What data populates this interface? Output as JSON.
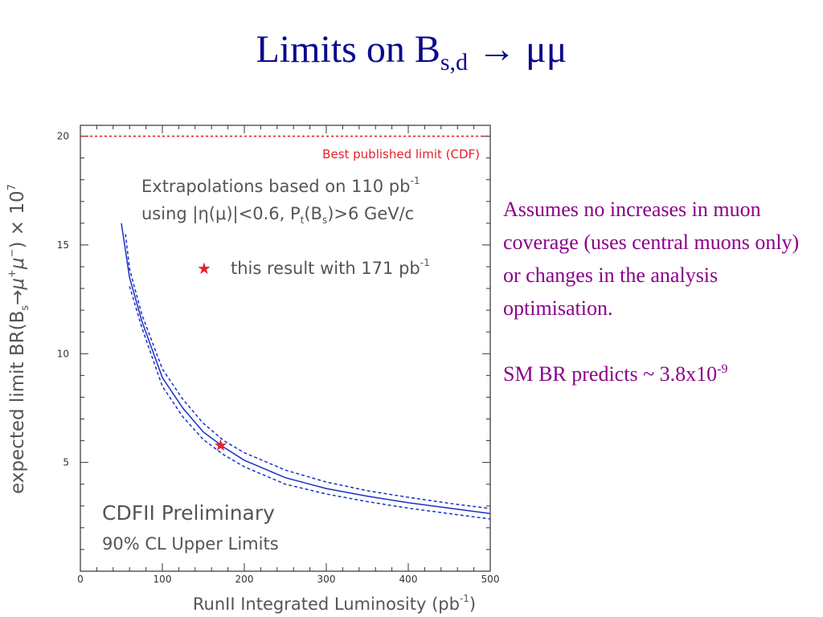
{
  "slide": {
    "title_main": "Limits on B",
    "title_sub": "s,d",
    "title_arrow": "→",
    "title_tail": "μμ"
  },
  "notes": {
    "assumption": "Assumes no increases in muon coverage (uses central muons only) or changes in the analysis optimisation.",
    "sm_prefix": "SM BR predicts ~ 3.8x10",
    "sm_exponent": "-9"
  },
  "chart_data": {
    "type": "line",
    "xlabel_main": "RunII Integrated Luminosity (pb",
    "xlabel_exp": "-1",
    "xlabel_close": ")",
    "ylabel_main": "expected limit BR(B",
    "ylabel_sub": "s",
    "ylabel_arrow": "→",
    "ylabel_mid": "μ",
    "ylabel_plus": "+",
    "ylabel_mu": "μ",
    "ylabel_minus": "−",
    "ylabel_tail": ") × 10",
    "ylabel_exp": "7",
    "xlim": [
      0,
      500
    ],
    "ylim": [
      0,
      20.5
    ],
    "x_ticks": [
      0,
      100,
      200,
      300,
      400,
      500
    ],
    "y_ticks": [
      5,
      10,
      15,
      20
    ],
    "best_limit": {
      "y": 20,
      "label": "Best published limit (CDF)",
      "color": "#e8202a"
    },
    "annotation_line1_a": "Extrapolations based on 110 pb",
    "annotation_line1_exp": "-1",
    "annotation_line2_a": "using |η(μ)|<0.6, P",
    "annotation_line2_sub_t": "t",
    "annotation_line2_b": "(B",
    "annotation_line2_sub_s": "s",
    "annotation_line2_c": ")>6 GeV/c",
    "legend_star_label": "this result with 171 pb",
    "legend_star_exp": "-1",
    "preliminary_label": "CDFII Preliminary",
    "cl_label": "90% CL Upper Limits",
    "series": [
      {
        "style": "solid",
        "color": "#1a2fc8",
        "x": [
          50,
          60,
          75,
          100,
          125,
          150,
          175,
          200,
          250,
          300,
          350,
          400,
          450,
          500
        ],
        "y": [
          16,
          13.5,
          11.5,
          8.9,
          7.5,
          6.4,
          5.7,
          5.1,
          4.3,
          3.8,
          3.45,
          3.15,
          2.9,
          2.65
        ]
      },
      {
        "style": "dashed",
        "color": "#1a2fc8",
        "x": [
          55,
          60,
          75,
          100,
          125,
          150,
          175,
          200,
          250,
          300,
          350,
          400,
          450,
          500
        ],
        "y": [
          15.5,
          13.9,
          11.8,
          9.3,
          7.9,
          6.8,
          6.0,
          5.45,
          4.65,
          4.1,
          3.7,
          3.4,
          3.12,
          2.88
        ]
      },
      {
        "style": "dashed",
        "color": "#1a2fc8",
        "x": [
          60,
          75,
          100,
          125,
          150,
          175,
          200,
          250,
          300,
          350,
          400,
          450,
          500
        ],
        "y": [
          13.1,
          11.2,
          8.5,
          7.1,
          6.05,
          5.35,
          4.8,
          4.0,
          3.55,
          3.2,
          2.9,
          2.65,
          2.4
        ]
      }
    ],
    "this_result": {
      "x": 171,
      "y": 5.8,
      "color": "#e8202a"
    }
  }
}
